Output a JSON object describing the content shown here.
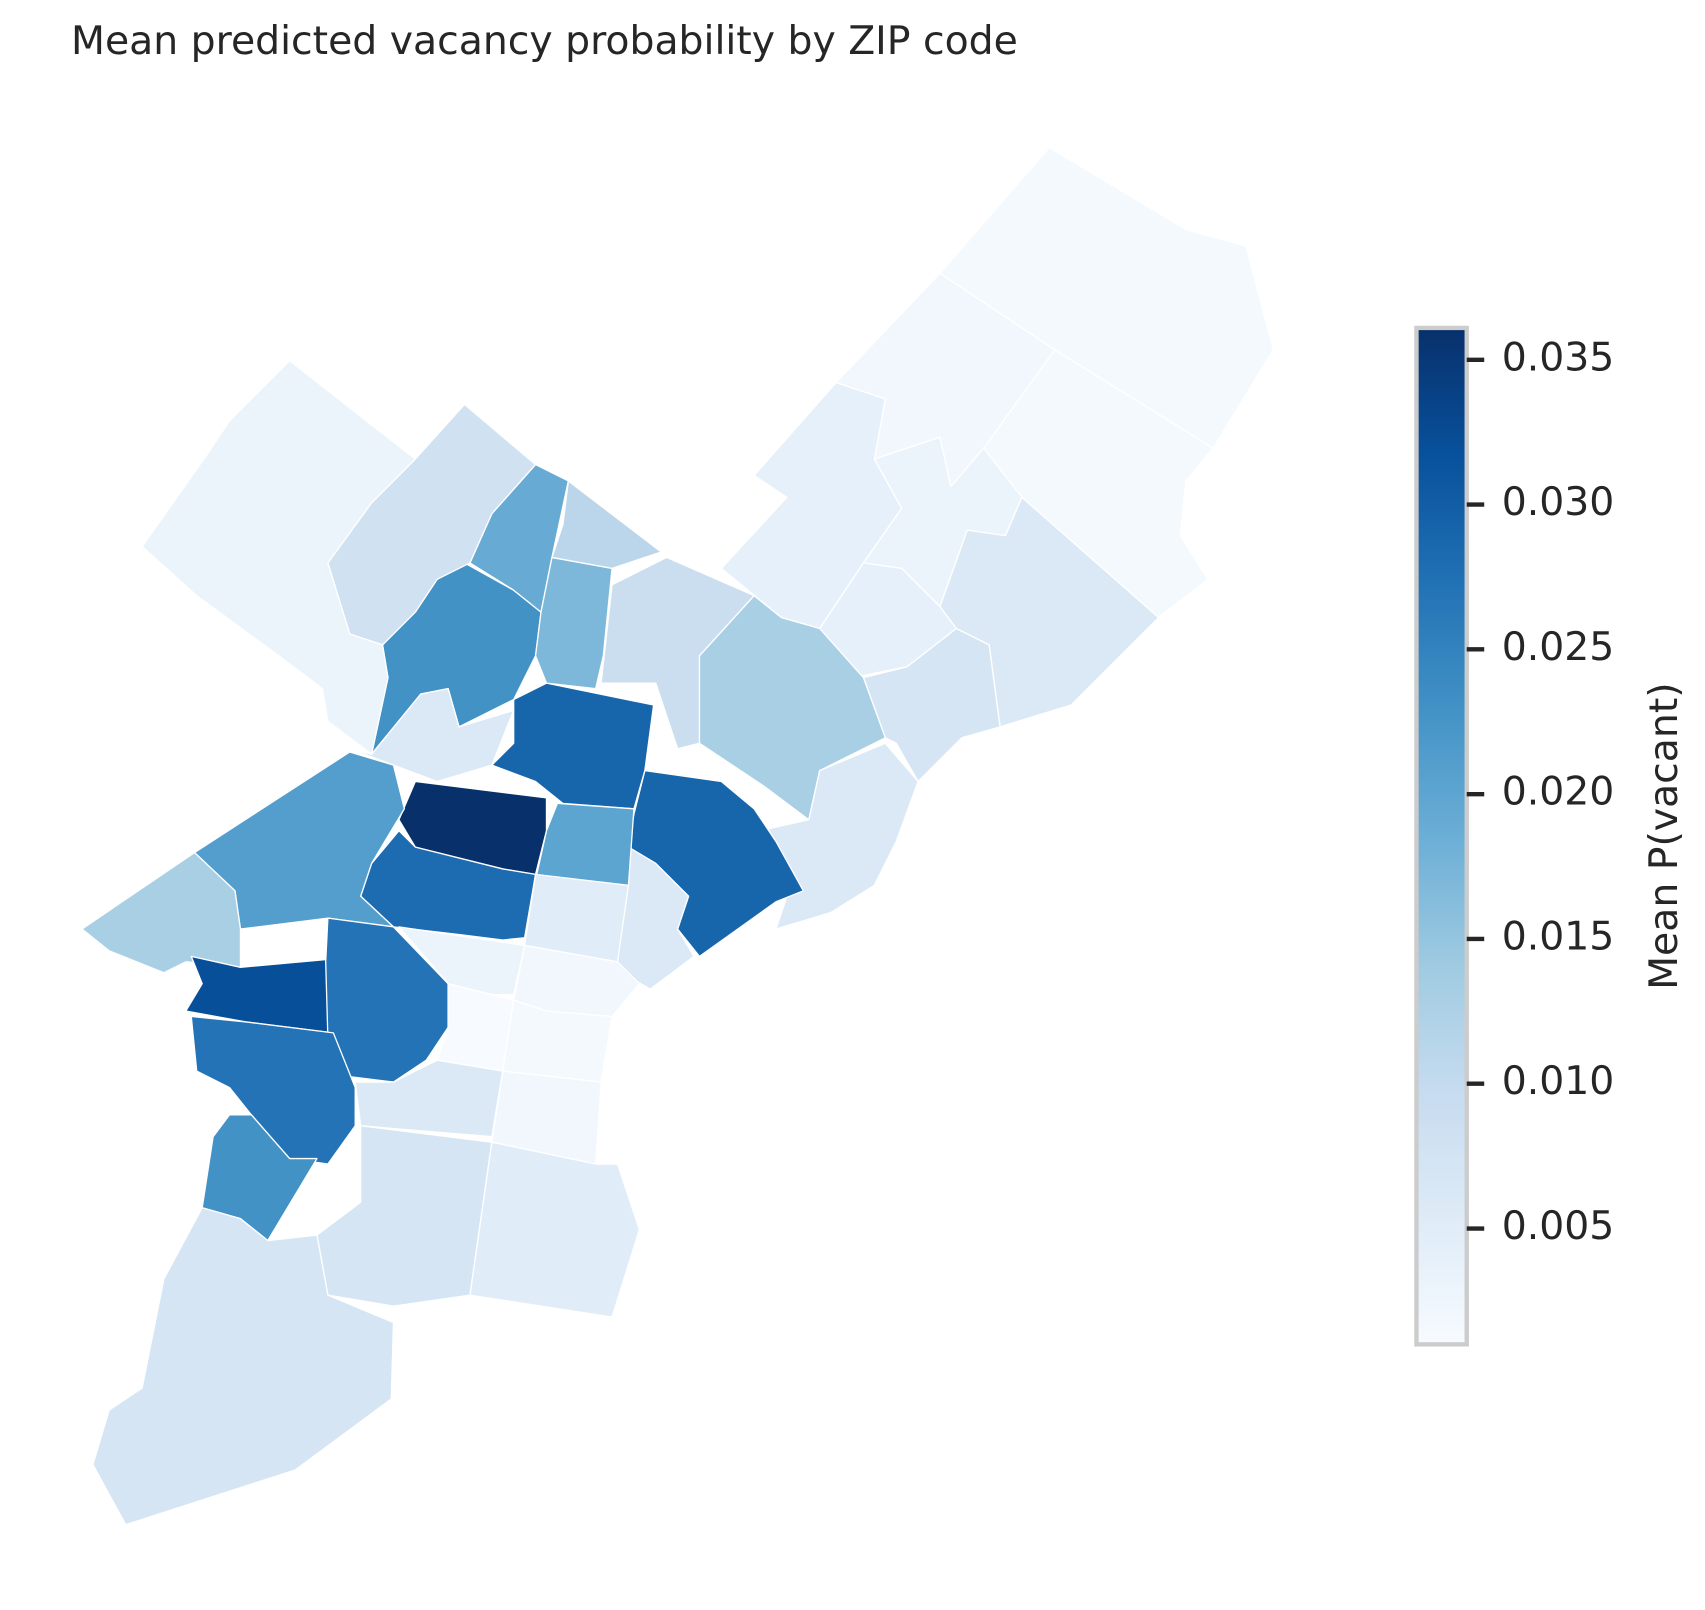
{
  "chart_data": {
    "type": "choropleth",
    "title": "Mean predicted vacancy probability by ZIP code",
    "colorbar_label": "Mean P(vacant)",
    "colormap": [
      "#f7fbff",
      "#deebf7",
      "#c6dbef",
      "#9ecae1",
      "#6baed6",
      "#4292c6",
      "#2171b5",
      "#08519c",
      "#08306b"
    ],
    "clim": [
      0.001,
      0.0361
    ],
    "cticks": [
      0.005,
      {
        "value": 0.01,
        "label": "0.010"
      },
      0.015,
      {
        "value": 0.02,
        "label": "0.020"
      },
      0.025,
      {
        "value": 0.03,
        "label": "0.030"
      },
      0.035
    ],
    "values": [
      0.0015,
      0.0015,
      0.002,
      0.004,
      0.003,
      0.006,
      0.004,
      0.007,
      0.009,
      0.013,
      0.006,
      0.029,
      0.006,
      0.029,
      0.02,
      0.036,
      0.028,
      0.005,
      0.023,
      0.019,
      0.017,
      0.011,
      0.008,
      0.003,
      0.006,
      0.021,
      0.013,
      0.032,
      0.027,
      0.027,
      0.023,
      0.003,
      0.002,
      0.001,
      0.0015,
      0.006,
      0.002,
      0.007,
      0.005,
      0.007
    ]
  }
}
